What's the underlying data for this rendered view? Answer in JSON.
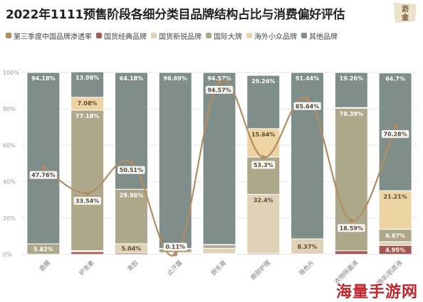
{
  "title": "2022年1111预售阶段各细分类目品牌结构占比与消费偏好评估",
  "logo_top": {
    "text_line1": "沥",
    "text_line2": "金"
  },
  "watermark": "海量手游网",
  "colors": {
    "penetration": "#b38d62",
    "domestic_classic": "#a65953",
    "domestic_new": "#e0d2b6",
    "international": "#aea88a",
    "niche_overseas": "#efd4a3",
    "other": "#7f8e88"
  },
  "legend": [
    {
      "label": "第三季度中国品牌渗透率",
      "key": "penetration"
    },
    {
      "label": "国货经典品牌",
      "key": "domestic_classic"
    },
    {
      "label": "国货新锐品牌",
      "key": "domestic_new"
    },
    {
      "label": "国际大牌",
      "key": "international"
    },
    {
      "label": "海外小众品牌",
      "key": "niche_overseas"
    },
    {
      "label": "其他品牌",
      "key": "other"
    }
  ],
  "chart_data": {
    "type": "bar",
    "stacked": true,
    "categories": [
      "面膜",
      "护发素",
      "发胶",
      "止汗露",
      "脱毛膏",
      "眼部护理",
      "吸色片",
      "衣物除菌液",
      "精华/肌底液"
    ],
    "ylim": [
      0,
      100
    ],
    "yticks": [
      "0%",
      "20%",
      "40%",
      "60%",
      "80%",
      "100%"
    ],
    "grid": true,
    "legend_position": "top",
    "series": [
      {
        "name": "国货经典品牌",
        "key": "domestic_classic",
        "values": [
          0.0,
          1.5,
          0.8,
          0.5,
          0.4,
          0.6,
          0.2,
          2.0,
          4.95
        ],
        "labels": [
          "",
          "",
          "",
          "",
          "",
          "",
          "",
          "",
          "4.95%"
        ]
      },
      {
        "name": "国货新锐品牌",
        "key": "domestic_new",
        "values": [
          0.0,
          0.6,
          5.04,
          0.5,
          3.0,
          32.4,
          8.37,
          0.0,
          2.0
        ],
        "labels": [
          "",
          "",
          "5.04%",
          "",
          "",
          "32.4%",
          "8.37%",
          "",
          ""
        ]
      },
      {
        "name": "国际大牌",
        "key": "international",
        "values": [
          5.82,
          77.18,
          29.98,
          2.2,
          1.8,
          20.5,
          0.0,
          78.39,
          6.87
        ],
        "labels": [
          "5.82%",
          "77.18%",
          "29.98%",
          "",
          "",
          "",
          "",
          "78.39%",
          "6.87%"
        ]
      },
      {
        "name": "海外小众品牌",
        "key": "niche_overseas",
        "values": [
          0.0,
          7.08,
          0.0,
          0.11,
          0.23,
          15.64,
          0.0,
          0.35,
          21.21
        ],
        "labels": [
          "",
          "7.08%",
          "",
          "",
          "",
          "15.64%",
          "",
          "",
          "21.21%"
        ]
      },
      {
        "name": "其他品牌",
        "key": "other",
        "values": [
          94.18,
          13.98,
          64.18,
          96.69,
          94.57,
          29.26,
          91.44,
          19.26,
          64.7
        ],
        "labels": [
          "94.18%",
          "13.98%",
          "64.18%",
          "96.69%",
          "94.57%",
          "29.26%",
          "91.44%",
          "19.26%",
          "64.7%"
        ]
      }
    ],
    "line": {
      "name": "第三季度中国品牌渗透率",
      "key": "penetration",
      "values": [
        47.76,
        33.54,
        50.51,
        0.11,
        94.57,
        53.3,
        85.64,
        18.59,
        70.28
      ],
      "labels": [
        "47.76%",
        "33.54%",
        "50.51%",
        "0.11%",
        "94.57%",
        "53.3%",
        "85.64%",
        "18.59%",
        "70.28%"
      ]
    }
  }
}
